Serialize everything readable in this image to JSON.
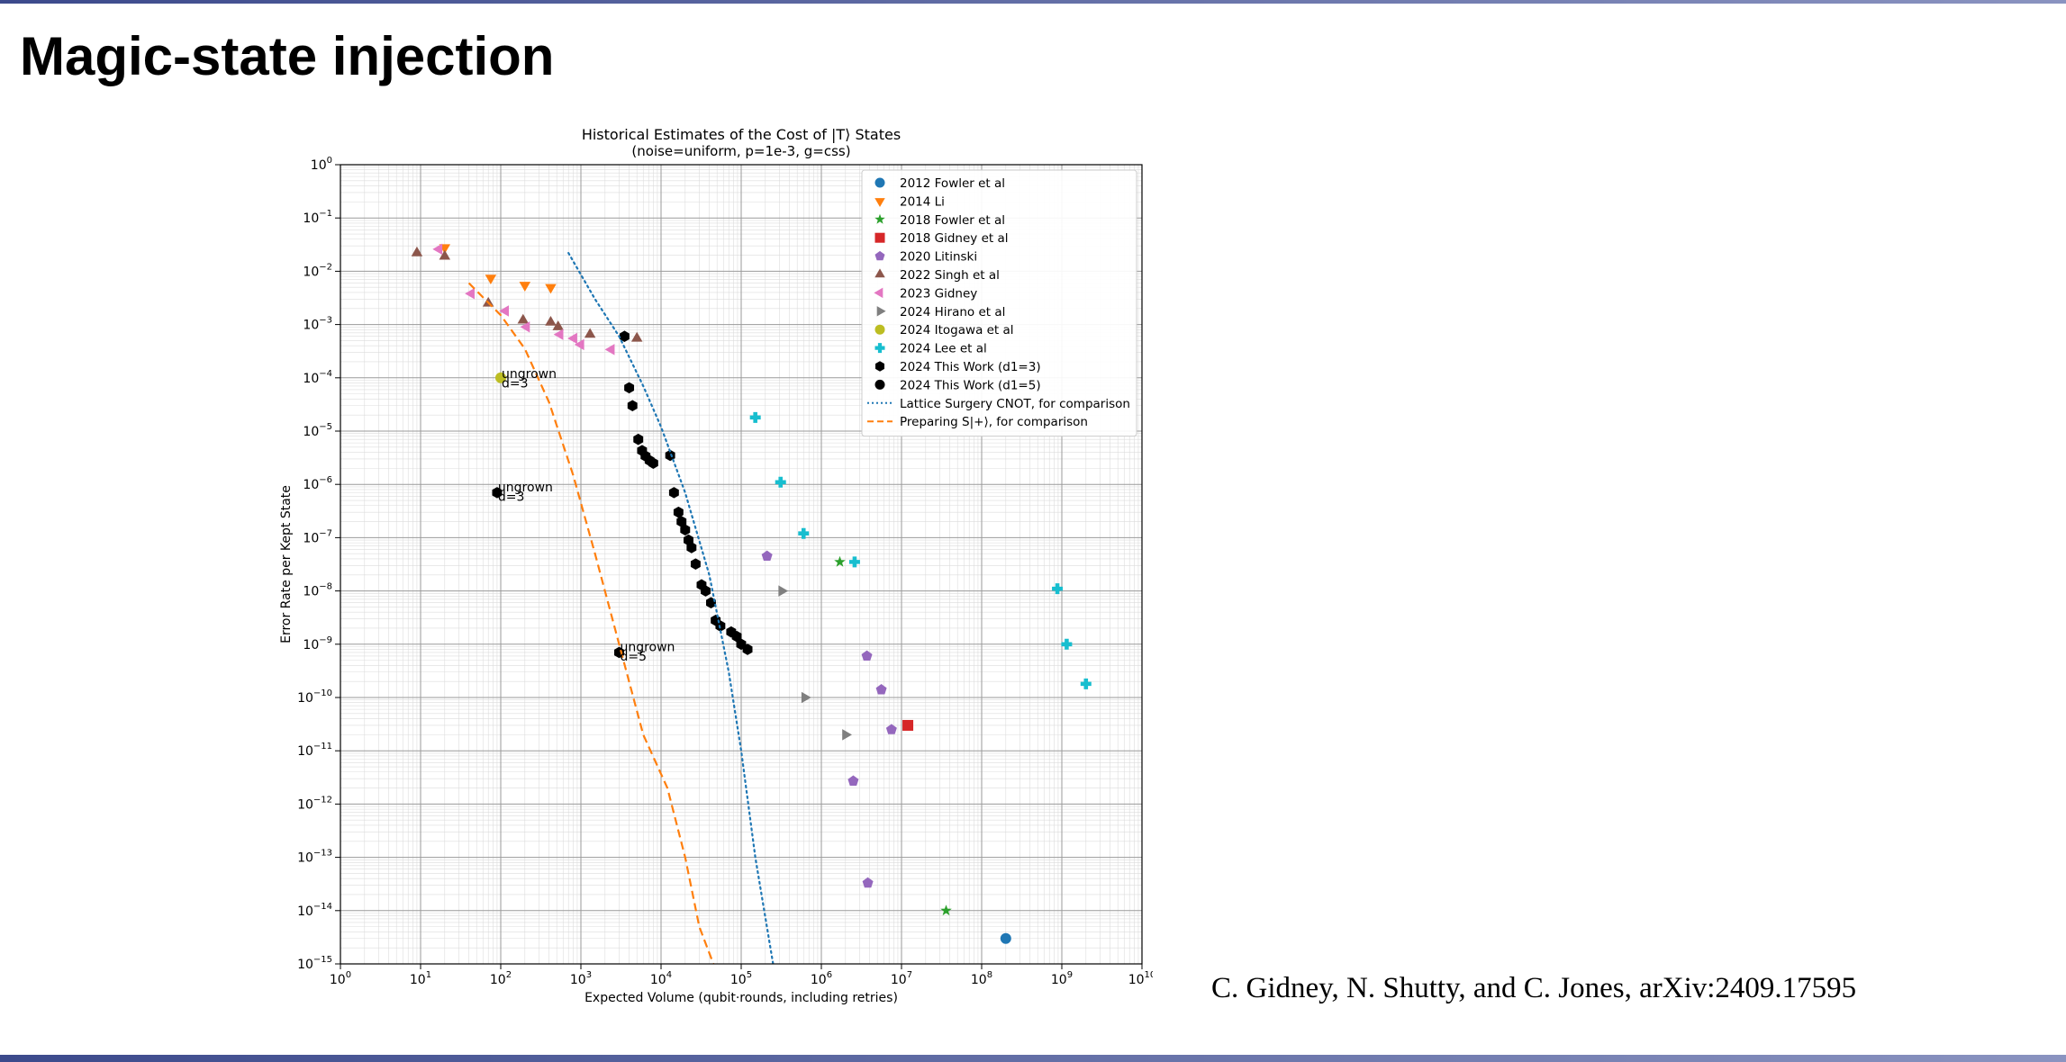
{
  "slide": {
    "title": "Magic-state injection",
    "citation": "C. Gidney, N. Shutty, and C. Jones, arXiv:2409.17595"
  },
  "colors": {
    "blue": "#1f77b4",
    "orange": "#ff7f0e",
    "green": "#2ca02c",
    "red": "#d62728",
    "purple": "#9467bd",
    "brown": "#8c564b",
    "pink": "#e377c2",
    "gray": "#7f7f7f",
    "olive": "#bcbd22",
    "cyan": "#17becf",
    "black": "#000000"
  },
  "chart_data": {
    "type": "scatter",
    "title": "Historical Estimates of the Cost of |T⟩ States",
    "subtitle": "(noise=uniform, p=1e-3, g=css)",
    "xlabel": "Expected Volume (qubit·rounds, including retries)",
    "ylabel": "Error Rate per Kept State",
    "x_scale": "log",
    "y_scale": "log",
    "xlim": [
      1,
      10000000000
    ],
    "ylim": [
      1e-15,
      1
    ],
    "grid": true,
    "legend_position": "top-right",
    "x_ticks": [
      {
        "value": 1,
        "base": "10",
        "exp": "0"
      },
      {
        "value": 10,
        "base": "10",
        "exp": "1"
      },
      {
        "value": 100,
        "base": "10",
        "exp": "2"
      },
      {
        "value": 1000,
        "base": "10",
        "exp": "3"
      },
      {
        "value": 10000,
        "base": "10",
        "exp": "4"
      },
      {
        "value": 100000,
        "base": "10",
        "exp": "5"
      },
      {
        "value": 1000000,
        "base": "10",
        "exp": "6"
      },
      {
        "value": 10000000,
        "base": "10",
        "exp": "7"
      },
      {
        "value": 100000000,
        "base": "10",
        "exp": "8"
      },
      {
        "value": 1000000000,
        "base": "10",
        "exp": "9"
      },
      {
        "value": 10000000000,
        "base": "10",
        "exp": "10"
      }
    ],
    "y_ticks": [
      {
        "value": 1,
        "base": "10",
        "exp": "0"
      },
      {
        "value": 0.1,
        "base": "10",
        "exp": "−1"
      },
      {
        "value": 0.01,
        "base": "10",
        "exp": "−2"
      },
      {
        "value": 0.001,
        "base": "10",
        "exp": "−3"
      },
      {
        "value": 0.0001,
        "base": "10",
        "exp": "−4"
      },
      {
        "value": 1e-05,
        "base": "10",
        "exp": "−5"
      },
      {
        "value": 1e-06,
        "base": "10",
        "exp": "−6"
      },
      {
        "value": 1e-07,
        "base": "10",
        "exp": "−7"
      },
      {
        "value": 1e-08,
        "base": "10",
        "exp": "−8"
      },
      {
        "value": 1e-09,
        "base": "10",
        "exp": "−9"
      },
      {
        "value": 1e-10,
        "base": "10",
        "exp": "−10"
      },
      {
        "value": 1e-11,
        "base": "10",
        "exp": "−11"
      },
      {
        "value": 1e-12,
        "base": "10",
        "exp": "−12"
      },
      {
        "value": 1e-13,
        "base": "10",
        "exp": "−13"
      },
      {
        "value": 1e-14,
        "base": "10",
        "exp": "−14"
      },
      {
        "value": 1e-15,
        "base": "10",
        "exp": "−15"
      }
    ],
    "series": [
      {
        "name": "2012 Fowler et al",
        "marker": "circle",
        "color": "#1f77b4",
        "points": [
          [
            200000000,
            3e-15
          ]
        ]
      },
      {
        "name": "2014 Li",
        "marker": "triangle-down",
        "color": "#ff7f0e",
        "points": [
          [
            20,
            0.028
          ],
          [
            75,
            0.0075
          ],
          [
            200,
            0.0055
          ],
          [
            420,
            0.005
          ]
        ]
      },
      {
        "name": "2018 Fowler et al",
        "marker": "star",
        "color": "#2ca02c",
        "points": [
          [
            1700000,
            3.5e-08
          ],
          [
            36000000,
            1e-14
          ]
        ]
      },
      {
        "name": "2018 Gidney et al",
        "marker": "square",
        "color": "#d62728",
        "points": [
          [
            12000000,
            3e-11
          ]
        ]
      },
      {
        "name": "2020 Litinski",
        "marker": "pentagon",
        "color": "#9467bd",
        "points": [
          [
            210000,
            4.5e-08
          ],
          [
            3700000,
            6e-10
          ],
          [
            5600000,
            1.4e-10
          ],
          [
            7500000,
            2.5e-11
          ],
          [
            2500000,
            2.7e-12
          ],
          [
            3800000,
            3.3e-14
          ]
        ]
      },
      {
        "name": "2022 Singh et al",
        "marker": "triangle-up",
        "color": "#8c564b",
        "points": [
          [
            9,
            0.022
          ],
          [
            20,
            0.019
          ],
          [
            70,
            0.0025
          ],
          [
            190,
            0.0012
          ],
          [
            420,
            0.0011
          ],
          [
            520,
            0.0009
          ],
          [
            1300,
            0.00065
          ],
          [
            5000,
            0.00055
          ]
        ]
      },
      {
        "name": "2023 Gidney",
        "marker": "triangle-left",
        "color": "#e377c2",
        "points": [
          [
            17,
            0.026
          ],
          [
            43,
            0.0038
          ],
          [
            115,
            0.0018
          ],
          [
            210,
            0.0009
          ],
          [
            550,
            0.00065
          ],
          [
            820,
            0.00055
          ],
          [
            1000,
            0.00042
          ],
          [
            2400,
            0.00034
          ]
        ]
      },
      {
        "name": "2024 Hirano et al",
        "marker": "triangle-right",
        "color": "#7f7f7f",
        "points": [
          [
            320000,
            1e-08
          ],
          [
            620000,
            1e-10
          ],
          [
            2000000,
            2e-11
          ]
        ]
      },
      {
        "name": "2024 Itogawa et al",
        "marker": "circle",
        "color": "#bcbd22",
        "points": [
          [
            100,
            0.0001
          ]
        ]
      },
      {
        "name": "2024 Lee et al",
        "marker": "plus",
        "color": "#17becf",
        "points": [
          [
            150000,
            1.8e-05
          ],
          [
            310000,
            1.1e-06
          ],
          [
            600000,
            1.2e-07
          ],
          [
            2600000,
            3.5e-08
          ],
          [
            880000000,
            1.1e-08
          ],
          [
            1150000000,
            1e-09
          ],
          [
            2000000000,
            1.8e-10
          ]
        ]
      },
      {
        "name": "2024 This Work (d1=3)",
        "marker": "hexagon",
        "color": "#000000",
        "points": [
          [
            3500,
            0.0006
          ],
          [
            4000,
            6.5e-05
          ],
          [
            4400,
            3e-05
          ],
          [
            5200,
            7e-06
          ],
          [
            5800,
            4.3e-06
          ],
          [
            6400,
            3.4e-06
          ],
          [
            7200,
            2.8e-06
          ],
          [
            8000,
            2.5e-06
          ],
          [
            13000,
            3.5e-06
          ],
          [
            14500,
            7e-07
          ],
          [
            16500,
            3e-07
          ],
          [
            18000,
            2e-07
          ],
          [
            20000,
            1.4e-07
          ],
          [
            22000,
            9e-08
          ],
          [
            24000,
            6.5e-08
          ],
          [
            27000,
            3.2e-08
          ],
          [
            32000,
            1.3e-08
          ],
          [
            36000,
            1e-08
          ],
          [
            42000,
            6e-09
          ],
          [
            48000,
            2.8e-09
          ],
          [
            55000,
            2.2e-09
          ],
          [
            75000,
            1.7e-09
          ],
          [
            88000,
            1.4e-09
          ],
          [
            100000,
            1e-09
          ],
          [
            120000,
            8e-10
          ],
          [
            90,
            7e-07
          ],
          [
            3000,
            7e-10
          ]
        ]
      },
      {
        "name": "2024 This Work (d1=5)",
        "marker": "circle",
        "color": "#000000",
        "points": []
      },
      {
        "name": "Lattice Surgery CNOT, for comparison",
        "marker": "none",
        "line": "dotted",
        "color": "#1f77b4",
        "points": [
          [
            700,
            0.022
          ],
          [
            1500,
            0.003
          ],
          [
            3000,
            0.0006
          ],
          [
            6000,
            7e-05
          ],
          [
            10000,
            1.2e-05
          ],
          [
            20000,
            7e-07
          ],
          [
            40000,
            2e-08
          ],
          [
            70000,
            3e-10
          ],
          [
            100000,
            1e-11
          ],
          [
            150000,
            1e-13
          ],
          [
            250000,
            1e-15
          ]
        ]
      },
      {
        "name": "Preparing S|+⟩, for comparison",
        "marker": "none",
        "line": "dashed",
        "color": "#ff7f0e",
        "points": [
          [
            40,
            0.006
          ],
          [
            100,
            0.0015
          ],
          [
            200,
            0.00035
          ],
          [
            400,
            3.5e-05
          ],
          [
            800,
            1.5e-06
          ],
          [
            1500,
            5e-08
          ],
          [
            3000,
            1e-09
          ],
          [
            6000,
            2e-11
          ],
          [
            12000,
            2e-12
          ],
          [
            20000,
            1e-13
          ],
          [
            30000,
            5e-15
          ],
          [
            45000,
            1e-15
          ]
        ]
      }
    ],
    "annotations": [
      {
        "text": "ungrown",
        "x": 100,
        "y": 0.00012
      },
      {
        "text": "d=3",
        "x": 100,
        "y": 8e-05
      },
      {
        "text": "ungrown",
        "x": 90,
        "y": 9e-07
      },
      {
        "text": "d=3",
        "x": 90,
        "y": 6e-07
      },
      {
        "text": "ungrown",
        "x": 3000,
        "y": 9e-10
      },
      {
        "text": "d=5",
        "x": 3000,
        "y": 6e-10
      }
    ]
  }
}
